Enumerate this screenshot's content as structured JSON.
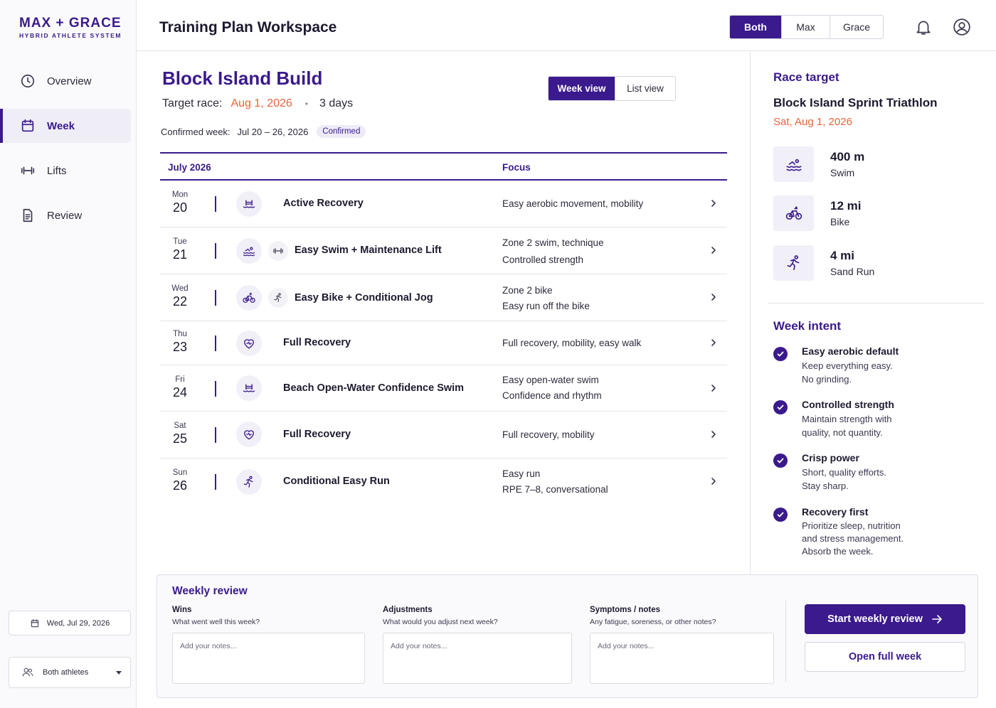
{
  "brand": {
    "name": "MAX + GRACE",
    "tagline": "HYBRID ATHLETE SYSTEM"
  },
  "sidebar": {
    "items": [
      {
        "label": "Overview",
        "icon": "clock-icon"
      },
      {
        "label": "Week",
        "icon": "calendar-icon",
        "active": true
      },
      {
        "label": "Lifts",
        "icon": "dumbbell-icon"
      },
      {
        "label": "Review",
        "icon": "document-icon"
      }
    ],
    "date": "Wed, Jul 29, 2026",
    "athlete_select": "Both athletes"
  },
  "header": {
    "title": "Training Plan Workspace",
    "athletes": [
      "Both",
      "Max",
      "Grace"
    ],
    "selected_athlete": "Both"
  },
  "plan": {
    "title": "Block Island Build",
    "target_label": "Target race:",
    "target_date": "Aug 1, 2026",
    "separator": "•",
    "days_left": "3 days",
    "confirmed_label": "Confirmed week:",
    "confirmed_range": "Jul 20 – 26, 2026",
    "confirmed_badge": "Confirmed",
    "views": [
      "Week view",
      "List view"
    ],
    "selected_view": "Week view"
  },
  "table": {
    "col_month": "July 2026",
    "col_focus": "Focus",
    "rows": [
      {
        "dname": "Mon",
        "dnum": "20",
        "icons": [
          "swim-pool-icon"
        ],
        "name": "Active Recovery",
        "focus": [
          "Easy aerobic movement, mobility"
        ]
      },
      {
        "dname": "Tue",
        "dnum": "21",
        "icons": [
          "swim-icon",
          "dumbbell-icon"
        ],
        "name": "Easy Swim + Maintenance Lift",
        "focus": [
          "Zone 2 swim, technique",
          "Controlled strength"
        ]
      },
      {
        "dname": "Wed",
        "dnum": "22",
        "icons": [
          "bike-icon",
          "run-icon"
        ],
        "name": "Easy Bike + Conditional Jog",
        "focus": [
          "Zone 2 bike",
          "Easy run off the bike"
        ]
      },
      {
        "dname": "Thu",
        "dnum": "23",
        "icons": [
          "heart-icon"
        ],
        "name": "Full Recovery",
        "focus": [
          "Full recovery, mobility, easy walk"
        ]
      },
      {
        "dname": "Fri",
        "dnum": "24",
        "icons": [
          "swim-pool-icon"
        ],
        "name": "Beach Open-Water Confidence Swim",
        "focus": [
          "Easy open-water swim",
          "Confidence and rhythm"
        ]
      },
      {
        "dname": "Sat",
        "dnum": "25",
        "icons": [
          "heart-icon"
        ],
        "name": "Full Recovery",
        "focus": [
          "Full recovery, mobility"
        ]
      },
      {
        "dname": "Sun",
        "dnum": "26",
        "icons": [
          "run-icon"
        ],
        "name": "Conditional Easy Run",
        "focus": [
          "Easy run",
          "RPE 7–8, conversational"
        ]
      }
    ]
  },
  "race": {
    "heading": "Race target",
    "name": "Block Island Sprint Triathlon",
    "date": "Sat, Aug 1, 2026",
    "legs": [
      {
        "value": "400 m",
        "label": "Swim",
        "icon": "swim-icon"
      },
      {
        "value": "12 mi",
        "label": "Bike",
        "icon": "bike-icon"
      },
      {
        "value": "4 mi",
        "label": "Sand Run",
        "icon": "run-icon"
      }
    ]
  },
  "intent": {
    "heading": "Week intent",
    "items": [
      {
        "title": "Easy aerobic default",
        "desc": "Keep everything easy. No grinding."
      },
      {
        "title": "Controlled strength",
        "desc": "Maintain strength with quality, not quantity."
      },
      {
        "title": "Crisp power",
        "desc": "Short, quality efforts. Stay sharp."
      },
      {
        "title": "Recovery first",
        "desc": "Prioritize sleep, nutrition and stress management. Absorb the week."
      }
    ]
  },
  "review": {
    "title": "Weekly review",
    "fields": [
      {
        "label": "Wins",
        "question": "What went well this week?",
        "placeholder": "Add your notes..."
      },
      {
        "label": "Adjustments",
        "question": "What would you adjust next week?",
        "placeholder": "Add your notes..."
      },
      {
        "label": "Symptoms / notes",
        "question": "Any fatigue, soreness, or other notes?",
        "placeholder": "Add your notes..."
      }
    ],
    "start_button": "Start weekly review",
    "open_button": "Open full week"
  },
  "colors": {
    "accent": "#3a1a8c",
    "highlight": "#e8643c"
  }
}
